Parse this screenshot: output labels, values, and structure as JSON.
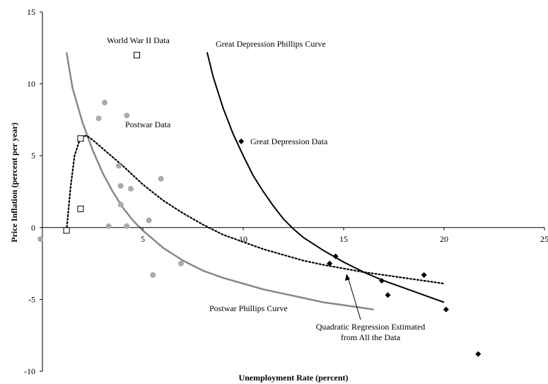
{
  "chart_data": {
    "type": "scatter",
    "xlabel": "Unemployment Rate (percent)",
    "ylabel": "Price Inflation (percent per year)",
    "xlim": [
      0,
      25
    ],
    "ylim": [
      -10,
      15
    ],
    "x_ticks": [
      5,
      10,
      15,
      20,
      25
    ],
    "x_tick_labels": [
      "5",
      "10",
      "15",
      "20",
      "25"
    ],
    "y_ticks": [
      -10,
      -5,
      0,
      5,
      10,
      15
    ],
    "y_tick_labels": [
      "-10",
      "-5",
      "0",
      "5",
      "10",
      "15"
    ],
    "grid": false,
    "colors": {
      "postwar": "#aaaaaa",
      "postwar_curve": "#888888",
      "depression": "#000000",
      "ww2": "#000000"
    },
    "series": [
      {
        "name": "World War II Data",
        "marker": "hollow-square",
        "points": [
          [
            1.2,
            -0.2
          ],
          [
            1.9,
            1.3
          ],
          [
            1.9,
            6.2
          ],
          [
            4.7,
            12.0
          ]
        ]
      },
      {
        "name": "Postwar Data",
        "marker": "gray-circle",
        "points": [
          [
            -0.1,
            -0.8
          ],
          [
            2.8,
            7.6
          ],
          [
            3.1,
            8.7
          ],
          [
            3.3,
            0.1
          ],
          [
            3.8,
            4.3
          ],
          [
            3.9,
            2.9
          ],
          [
            3.9,
            1.6
          ],
          [
            4.2,
            0.1
          ],
          [
            4.2,
            7.8
          ],
          [
            4.4,
            2.7
          ],
          [
            5.3,
            0.5
          ],
          [
            5.5,
            -3.3
          ],
          [
            5.9,
            3.4
          ],
          [
            6.9,
            -2.5
          ]
        ]
      },
      {
        "name": "Great Depression Data",
        "marker": "black-diamond",
        "points": [
          [
            9.9,
            6.0
          ],
          [
            14.3,
            -2.5
          ],
          [
            14.6,
            -2.0
          ],
          [
            16.9,
            -3.7
          ],
          [
            17.2,
            -4.7
          ],
          [
            19.0,
            -3.3
          ],
          [
            20.1,
            -5.7
          ],
          [
            21.7,
            -8.8
          ]
        ]
      }
    ],
    "curves": [
      {
        "name": "Postwar  Phillips Curve",
        "style": "solid-gray",
        "points": [
          [
            1.2,
            12.2
          ],
          [
            1.5,
            9.7
          ],
          [
            2.0,
            7.3
          ],
          [
            2.5,
            5.4
          ],
          [
            3.0,
            3.8
          ],
          [
            3.5,
            2.5
          ],
          [
            4.0,
            1.4
          ],
          [
            4.5,
            0.5
          ],
          [
            5.0,
            -0.2
          ],
          [
            5.5,
            -0.8
          ],
          [
            6.0,
            -1.4
          ],
          [
            7.0,
            -2.3
          ],
          [
            8.0,
            -3.0
          ],
          [
            9.0,
            -3.5
          ],
          [
            10.0,
            -3.9
          ],
          [
            11.0,
            -4.3
          ],
          [
            12.0,
            -4.6
          ],
          [
            13.0,
            -4.9
          ],
          [
            14.0,
            -5.2
          ],
          [
            15.0,
            -5.4
          ],
          [
            16.0,
            -5.6
          ],
          [
            16.5,
            -5.7
          ]
        ]
      },
      {
        "name": "Great Depression Phillips Curve",
        "style": "solid-black",
        "points": [
          [
            8.2,
            12.2
          ],
          [
            8.5,
            10.5
          ],
          [
            9.0,
            8.3
          ],
          [
            9.5,
            6.5
          ],
          [
            10.0,
            5.0
          ],
          [
            10.5,
            3.6
          ],
          [
            11.0,
            2.5
          ],
          [
            11.5,
            1.5
          ],
          [
            12.0,
            0.6
          ],
          [
            12.5,
            -0.1
          ],
          [
            13.0,
            -0.7
          ],
          [
            14.0,
            -1.6
          ],
          [
            15.0,
            -2.4
          ],
          [
            16.0,
            -3.1
          ],
          [
            17.0,
            -3.7
          ],
          [
            18.0,
            -4.2
          ],
          [
            19.0,
            -4.7
          ],
          [
            20.0,
            -5.2
          ]
        ]
      },
      {
        "name": "Quadratic Regression Estimated from All the Data",
        "style": "dotted-black",
        "points": [
          [
            1.2,
            -0.2
          ],
          [
            1.4,
            2.8
          ],
          [
            1.6,
            5.0
          ],
          [
            1.9,
            6.3
          ],
          [
            2.2,
            6.4
          ],
          [
            2.5,
            6.1
          ],
          [
            3.0,
            5.5
          ],
          [
            4.0,
            4.3
          ],
          [
            5.0,
            3.0
          ],
          [
            6.0,
            1.9
          ],
          [
            7.0,
            1.0
          ],
          [
            8.0,
            0.2
          ],
          [
            9.0,
            -0.5
          ],
          [
            10.0,
            -1.0
          ],
          [
            11.0,
            -1.5
          ],
          [
            12.0,
            -1.9
          ],
          [
            13.0,
            -2.3
          ],
          [
            14.0,
            -2.6
          ],
          [
            16.0,
            -3.1
          ],
          [
            18.0,
            -3.5
          ],
          [
            20.0,
            -3.9
          ]
        ]
      }
    ],
    "annotations": {
      "ww2_label": "World War II Data",
      "postwar_label": "Postwar Data",
      "depression_data_label": "Great Depression Data",
      "depression_curve_label": "Great Depression Phillips Curve",
      "postwar_curve_label": "Postwar  Phillips Curve",
      "regression_line1": "Quadratic Regression Estimated",
      "regression_line2": "from All the Data"
    }
  }
}
